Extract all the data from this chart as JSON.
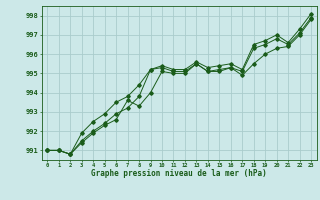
{
  "xlabel": "Graphe pression niveau de la mer (hPa)",
  "ylim": [
    990.5,
    998.5
  ],
  "xlim": [
    -0.5,
    23.5
  ],
  "yticks": [
    991,
    992,
    993,
    994,
    995,
    996,
    997,
    998
  ],
  "xticks": [
    0,
    1,
    2,
    3,
    4,
    5,
    6,
    7,
    8,
    9,
    10,
    11,
    12,
    13,
    14,
    15,
    16,
    17,
    18,
    19,
    20,
    21,
    22,
    23
  ],
  "bg_color": "#cce8e8",
  "grid_color": "#aacccc",
  "line_color": "#1a5c1a",
  "line1": [
    991.0,
    991.0,
    990.8,
    991.4,
    991.9,
    992.3,
    992.6,
    993.6,
    993.3,
    994.0,
    995.1,
    995.0,
    995.0,
    995.5,
    995.1,
    995.1,
    995.3,
    994.9,
    995.5,
    996.0,
    996.3,
    996.4,
    997.0,
    997.8
  ],
  "line2": [
    991.0,
    991.0,
    990.8,
    991.5,
    992.0,
    992.4,
    992.9,
    993.2,
    993.8,
    995.2,
    995.3,
    995.1,
    995.1,
    995.5,
    995.1,
    995.2,
    995.3,
    995.1,
    996.3,
    996.5,
    996.8,
    996.5,
    997.1,
    997.9
  ],
  "line3": [
    991.0,
    991.0,
    990.8,
    991.9,
    992.5,
    992.9,
    993.5,
    993.8,
    994.4,
    995.2,
    995.4,
    995.2,
    995.2,
    995.6,
    995.3,
    995.4,
    995.5,
    995.2,
    996.5,
    996.7,
    997.0,
    996.6,
    997.3,
    998.1
  ],
  "ytick_fontsize": 5.0,
  "xtick_fontsize": 4.0,
  "xlabel_fontsize": 5.5
}
